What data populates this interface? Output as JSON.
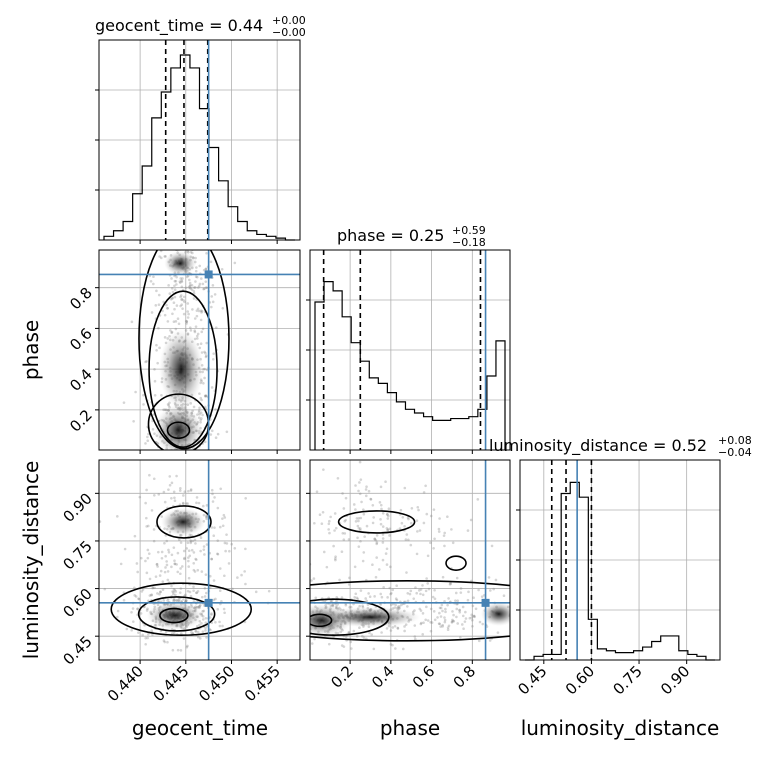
{
  "chart_data": {
    "type": "corner",
    "parameters": [
      "geocent_time",
      "phase",
      "luminosity_distance"
    ],
    "truths": {
      "geocent_time": 0.4475,
      "phase": 0.865,
      "luminosity_distance": 0.555
    },
    "titles": [
      {
        "name": "geocent_time = 0.44",
        "sup": "+0.00",
        "sub": "−0.00"
      },
      {
        "name": "phase = 0.25",
        "sup": "+0.59",
        "sub": "−0.18"
      },
      {
        "name": "luminosity_distance = 0.52",
        "sup": "+0.08",
        "sub": "−0.04"
      }
    ],
    "axis_labels": {
      "geocent_time": "geocent_time",
      "phase": "phase",
      "luminosity_distance": "luminosity_distance"
    },
    "ranges": {
      "geocent_time": [
        0.4355,
        0.4575
      ],
      "phase": [
        0.003,
        0.985
      ],
      "luminosity_distance": [
        0.375,
        1.005
      ]
    },
    "ticks": {
      "geocent_time": [
        "0.440",
        "0.445",
        "0.450",
        "0.455"
      ],
      "phase": [
        "0.2",
        "0.4",
        "0.6",
        "0.8"
      ],
      "luminosity_distance": [
        "0.45",
        "0.60",
        "0.75",
        "0.90"
      ]
    },
    "quantiles": {
      "geocent_time": [
        0.4428,
        0.4448,
        0.4474
      ],
      "phase": [
        0.07,
        0.25,
        0.84
      ],
      "luminosity_distance": [
        0.475,
        0.52,
        0.6
      ]
    },
    "histograms": {
      "geocent_time": [
        0.02,
        0.05,
        0.1,
        0.25,
        0.4,
        0.66,
        0.8,
        0.93,
        1.0,
        0.93,
        0.71,
        0.5,
        0.32,
        0.18,
        0.1,
        0.05,
        0.03,
        0.02,
        0.01,
        0.0
      ],
      "phase": [
        0.8,
        0.91,
        0.86,
        0.72,
        0.58,
        0.48,
        0.39,
        0.36,
        0.31,
        0.26,
        0.22,
        0.2,
        0.18,
        0.16,
        0.16,
        0.17,
        0.17,
        0.18,
        0.22,
        0.4,
        0.59
      ],
      "luminosity_distance": [
        0.0,
        0.02,
        0.03,
        0.03,
        0.9,
        0.96,
        0.88,
        0.22,
        0.06,
        0.05,
        0.04,
        0.04,
        0.05,
        0.07,
        0.1,
        0.13,
        0.13,
        0.05,
        0.03,
        0.02,
        0.0
      ]
    },
    "grid": true
  }
}
